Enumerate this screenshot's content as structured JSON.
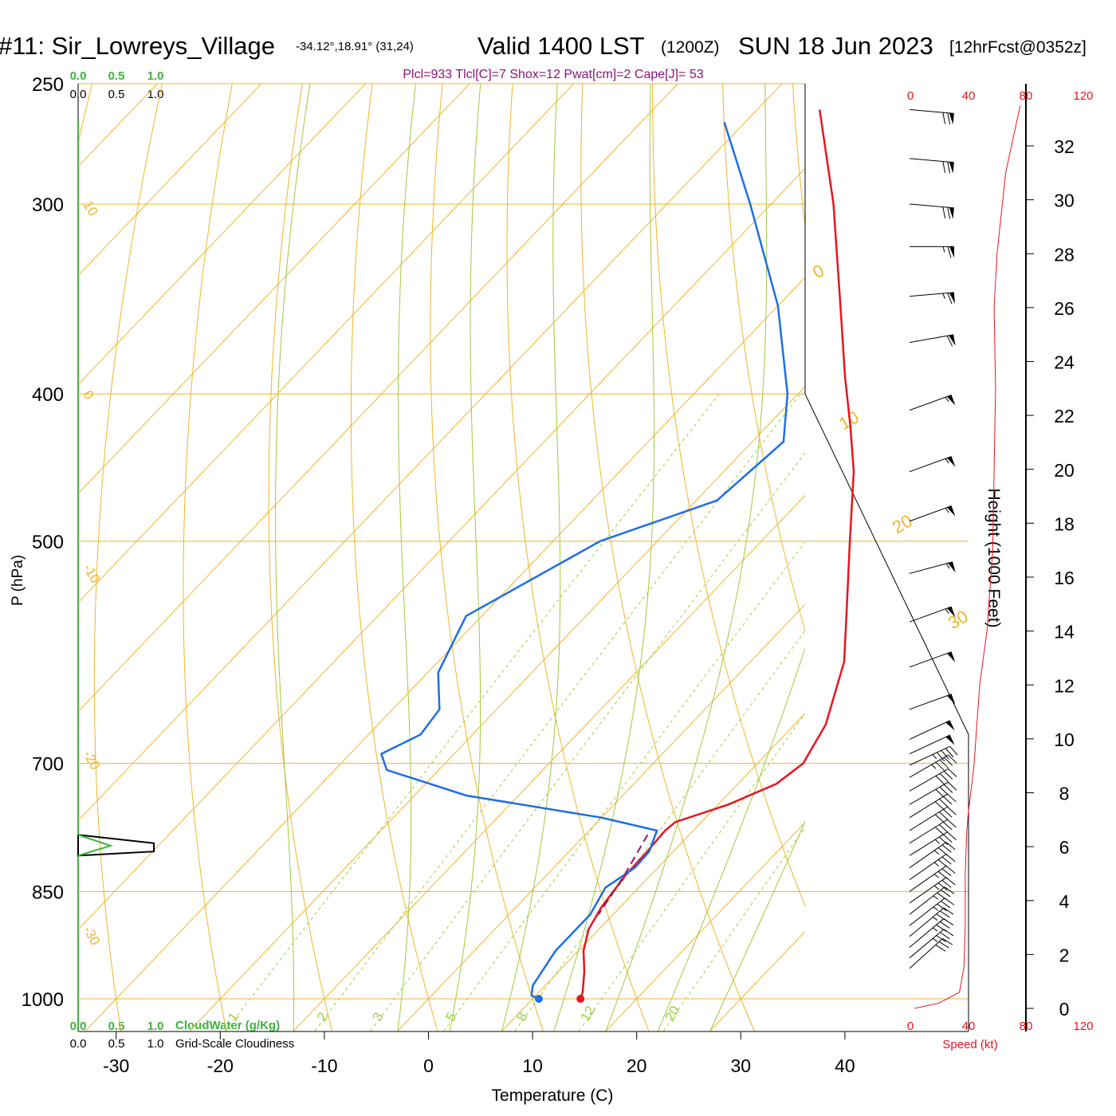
{
  "header": {
    "station": "#11: Sir_Lowreys_Village",
    "coords": "-34.12°,18.91° (31,24)",
    "valid": "Valid 1400 LST",
    "zulu": "(1200Z)",
    "date": "SUN 18 Jun 2023",
    "forecast": "[12hrFcst@0352z]"
  },
  "indices": "Plcl=933 Tlcl[C]=7 Shox=12 Pwat[cm]=2 Cape[J]= 53",
  "scales": {
    "cloudwater_ticks": [
      "0.0",
      "0.5",
      "1.0"
    ],
    "cloudiness_ticks": [
      "0.0",
      "0.5",
      "1.0"
    ],
    "cloudwater_label": "CloudWater (g/Kg)",
    "cloudiness_label": "Grid-Scale Cloudiness",
    "speed_ticks": [
      "0",
      "40",
      "80",
      "120"
    ],
    "speed_label": "Speed (kt)"
  },
  "colors": {
    "temperature": "#e8141e",
    "dewpoint": "#1e6ee6",
    "isotherm": "#f0b428",
    "moist_adiabat": "#a0c83c",
    "mixing_ratio": "#9bd23c",
    "parcel": "#8c1478",
    "cloudwater": "#3cb43c",
    "speed": "#e8141e"
  },
  "chart_data": {
    "type": "skew-t",
    "xlabel": "Temperature (C)",
    "ylabel": "P (hPa)",
    "right_axis_label": "Height (1000 Feet)",
    "x_ticks": [
      -30,
      -20,
      -10,
      0,
      10,
      20,
      30,
      40
    ],
    "p_ticks": [
      250,
      300,
      400,
      500,
      700,
      850,
      1000
    ],
    "height_ticks": [
      0,
      2,
      4,
      6,
      8,
      10,
      12,
      14,
      16,
      18,
      20,
      22,
      24,
      26,
      28,
      30,
      32
    ],
    "isotherm_labels": [
      {
        "t": 10,
        "p": 300
      },
      {
        "t": 0,
        "p": 400
      },
      {
        "t": -10,
        "p": 520
      },
      {
        "t": -20,
        "p": 690
      },
      {
        "t": -30,
        "p": 900
      },
      {
        "t": 0,
        "p": 340
      },
      {
        "t": 10,
        "p": 420
      },
      {
        "t": 20,
        "p": 490
      },
      {
        "t": 30,
        "p": 560
      }
    ],
    "mixing_ratio_labels": [
      "1",
      "2",
      "3",
      "5",
      "8",
      "12",
      "20"
    ],
    "temperature": [
      {
        "p": 1000,
        "t": 14.6
      },
      {
        "p": 990,
        "t": 14.2
      },
      {
        "p": 960,
        "t": 12.5
      },
      {
        "p": 930,
        "t": 10.5
      },
      {
        "p": 900,
        "t": 9.0
      },
      {
        "p": 870,
        "t": 8.2
      },
      {
        "p": 830,
        "t": 7.6
      },
      {
        "p": 800,
        "t": 7.5
      },
      {
        "p": 775,
        "t": 7.3
      },
      {
        "p": 765,
        "t": 7.5
      },
      {
        "p": 745,
        "t": 11.0
      },
      {
        "p": 722,
        "t": 13.7
      },
      {
        "p": 700,
        "t": 14.4
      },
      {
        "p": 660,
        "t": 13.0
      },
      {
        "p": 600,
        "t": 9.0
      },
      {
        "p": 550,
        "t": 4.0
      },
      {
        "p": 500,
        "t": -1.5
      },
      {
        "p": 450,
        "t": -7.5
      },
      {
        "p": 420,
        "t": -12.0
      },
      {
        "p": 390,
        "t": -17.0
      },
      {
        "p": 350,
        "t": -24.0
      },
      {
        "p": 300,
        "t": -34.0
      },
      {
        "p": 260,
        "t": -44.0
      }
    ],
    "dewpoint": [
      {
        "p": 1000,
        "t": 10.6
      },
      {
        "p": 995,
        "t": 9.6
      },
      {
        "p": 980,
        "t": 8.8
      },
      {
        "p": 930,
        "t": 7.8
      },
      {
        "p": 880,
        "t": 7.8
      },
      {
        "p": 845,
        "t": 6.8
      },
      {
        "p": 820,
        "t": 7.8
      },
      {
        "p": 800,
        "t": 7.7
      },
      {
        "p": 775,
        "t": 6.5
      },
      {
        "p": 760,
        "t": 0.0
      },
      {
        "p": 735,
        "t": -15.0
      },
      {
        "p": 707,
        "t": -25.0
      },
      {
        "p": 690,
        "t": -27.0
      },
      {
        "p": 670,
        "t": -25.0
      },
      {
        "p": 645,
        "t": -25.5
      },
      {
        "p": 610,
        "t": -29.0
      },
      {
        "p": 560,
        "t": -31.5
      },
      {
        "p": 500,
        "t": -25.5
      },
      {
        "p": 470,
        "t": -18.0
      },
      {
        "p": 430,
        "t": -17.0
      },
      {
        "p": 400,
        "t": -21.0
      },
      {
        "p": 350,
        "t": -30.0
      },
      {
        "p": 300,
        "t": -42.0
      },
      {
        "p": 265,
        "t": -52.0
      }
    ],
    "parcel": [
      {
        "p": 780,
        "t": 6.0
      },
      {
        "p": 830,
        "t": 7.5
      },
      {
        "p": 880,
        "t": 8.6
      }
    ],
    "surface_temperature": 14.6,
    "surface_dewpoint": 10.6,
    "wind_speed_profile": [
      {
        "h": 0,
        "s": 3
      },
      {
        "h": 0.2,
        "s": 20
      },
      {
        "h": 0.6,
        "s": 34
      },
      {
        "h": 1.5,
        "s": 37
      },
      {
        "h": 3,
        "s": 38
      },
      {
        "h": 5,
        "s": 38
      },
      {
        "h": 6.5,
        "s": 39
      },
      {
        "h": 7.2,
        "s": 40
      },
      {
        "h": 9,
        "s": 44
      },
      {
        "h": 12,
        "s": 48
      },
      {
        "h": 14,
        "s": 53
      },
      {
        "h": 17,
        "s": 57
      },
      {
        "h": 20,
        "s": 58
      },
      {
        "h": 23,
        "s": 59
      },
      {
        "h": 26,
        "s": 58
      },
      {
        "h": 28,
        "s": 60
      },
      {
        "h": 31,
        "s": 66
      },
      {
        "h": 33.5,
        "s": 76
      }
    ],
    "barbs": [
      {
        "p": 260,
        "dir": 275,
        "spd": 70
      },
      {
        "p": 280,
        "dir": 275,
        "spd": 70
      },
      {
        "p": 300,
        "dir": 275,
        "spd": 70
      },
      {
        "p": 320,
        "dir": 270,
        "spd": 68
      },
      {
        "p": 345,
        "dir": 265,
        "spd": 66
      },
      {
        "p": 370,
        "dir": 260,
        "spd": 60
      },
      {
        "p": 410,
        "dir": 250,
        "spd": 58
      },
      {
        "p": 450,
        "dir": 250,
        "spd": 58
      },
      {
        "p": 485,
        "dir": 250,
        "spd": 58
      },
      {
        "p": 525,
        "dir": 255,
        "spd": 56
      },
      {
        "p": 565,
        "dir": 250,
        "spd": 55
      },
      {
        "p": 605,
        "dir": 250,
        "spd": 52
      },
      {
        "p": 645,
        "dir": 250,
        "spd": 52
      },
      {
        "p": 675,
        "dir": 245,
        "spd": 50
      },
      {
        "p": 690,
        "dir": 245,
        "spd": 50
      },
      {
        "p": 702,
        "dir": 245,
        "spd": 48
      },
      {
        "p": 715,
        "dir": 240,
        "spd": 45
      },
      {
        "p": 730,
        "dir": 240,
        "spd": 42
      },
      {
        "p": 745,
        "dir": 240,
        "spd": 40
      },
      {
        "p": 760,
        "dir": 238,
        "spd": 40
      },
      {
        "p": 775,
        "dir": 238,
        "spd": 40
      },
      {
        "p": 790,
        "dir": 238,
        "spd": 40
      },
      {
        "p": 805,
        "dir": 238,
        "spd": 38
      },
      {
        "p": 820,
        "dir": 235,
        "spd": 38
      },
      {
        "p": 835,
        "dir": 235,
        "spd": 38
      },
      {
        "p": 850,
        "dir": 235,
        "spd": 38
      },
      {
        "p": 865,
        "dir": 235,
        "spd": 38
      },
      {
        "p": 880,
        "dir": 232,
        "spd": 37
      },
      {
        "p": 895,
        "dir": 232,
        "spd": 37
      },
      {
        "p": 910,
        "dir": 230,
        "spd": 36
      },
      {
        "p": 925,
        "dir": 230,
        "spd": 35
      },
      {
        "p": 940,
        "dir": 230,
        "spd": 35
      },
      {
        "p": 955,
        "dir": 228,
        "spd": 34
      }
    ],
    "cloudiness_profile": [
      {
        "p": 780,
        "v": 0.0
      },
      {
        "p": 790,
        "v": 0.98
      },
      {
        "p": 800,
        "v": 0.98
      },
      {
        "p": 805,
        "v": 0.0
      }
    ],
    "cloudwater_profile": [
      {
        "p": 780,
        "v": 0.0
      },
      {
        "p": 793,
        "v": 0.42
      },
      {
        "p": 805,
        "v": 0.0
      }
    ]
  }
}
